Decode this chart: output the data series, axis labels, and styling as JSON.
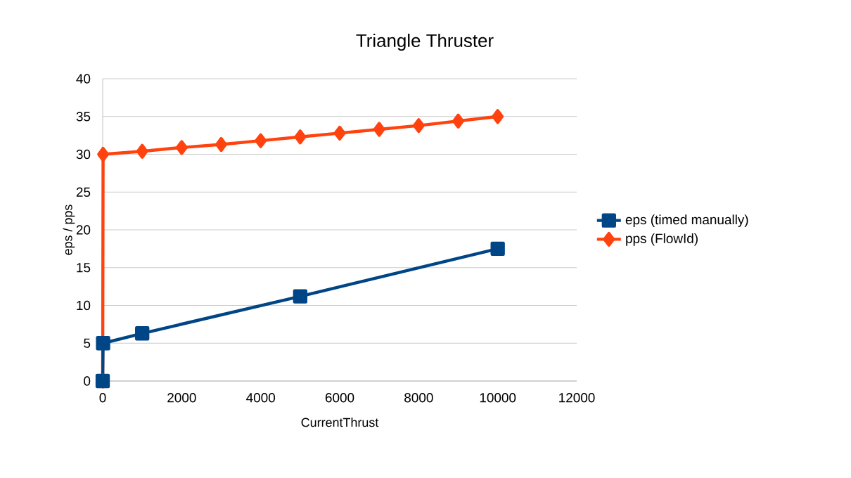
{
  "chart_data": {
    "type": "line",
    "title": "Triangle Thruster",
    "xlabel": "CurrentThrust",
    "ylabel": "eps / pps",
    "xlim": [
      0,
      12000
    ],
    "xticks": [
      0,
      2000,
      4000,
      6000,
      8000,
      10000,
      12000
    ],
    "ylim": [
      0,
      40
    ],
    "yticks": [
      0,
      5,
      10,
      15,
      20,
      25,
      30,
      35,
      40
    ],
    "grid": "y",
    "legend": "right",
    "line_style": "solid",
    "series": [
      {
        "name": "eps (timed manually)",
        "color": "#004586",
        "marker": "square",
        "x": [
          0,
          10,
          1000,
          5000,
          10000
        ],
        "values": [
          0,
          5,
          6.3,
          11.2,
          17.5
        ]
      },
      {
        "name": "pps (FlowId)",
        "color": "#ff420e",
        "marker": "diamond",
        "x": [
          0,
          10,
          1000,
          2000,
          3000,
          4000,
          5000,
          6000,
          7000,
          8000,
          9000,
          10000
        ],
        "values": [
          0,
          30,
          30.4,
          30.9,
          31.3,
          31.8,
          32.3,
          32.8,
          33.3,
          33.8,
          34.4,
          35
        ]
      }
    ]
  }
}
